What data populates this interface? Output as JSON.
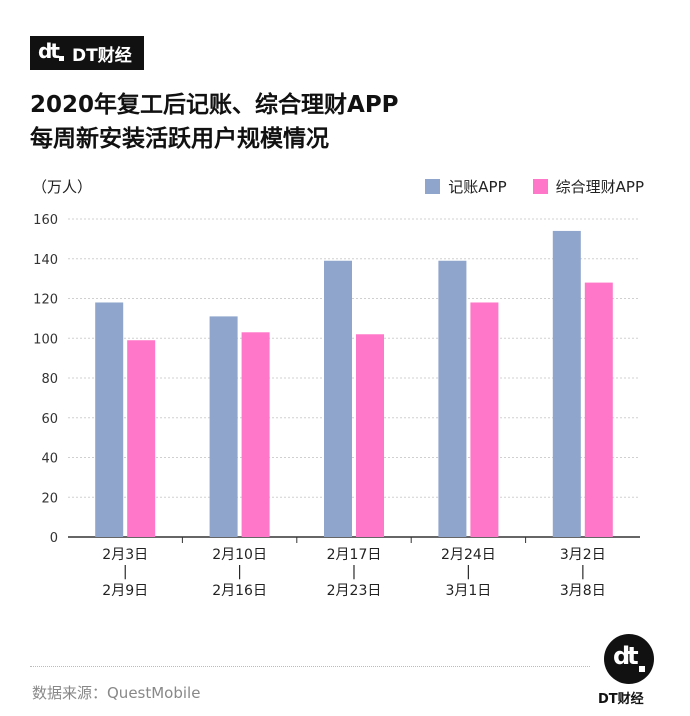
{
  "brand": {
    "name": "DT财经",
    "logo_text": "DT财经"
  },
  "title_lines": [
    "2020年复工后记账、综合理财APP",
    "每周新安装活跃用户规模情况"
  ],
  "unit_label": "（万人）",
  "source": "数据来源：QuestMobile",
  "colors": {
    "series1": "#8FA5CC",
    "series2": "#FF77C8",
    "grid": "#d0d0d0",
    "axis": "#333333"
  },
  "chart_data": {
    "type": "bar",
    "title": "2020年复工后记账、综合理财APP每周新安装活跃用户规模情况",
    "ylabel": "（万人）",
    "xlabel": "",
    "ylim": [
      0,
      160
    ],
    "yticks": [
      0,
      20,
      40,
      60,
      80,
      100,
      120,
      140,
      160
    ],
    "grid": true,
    "legend_position": "top-right",
    "categories": [
      {
        "start": "2月3日",
        "sep": "|",
        "end": "2月9日"
      },
      {
        "start": "2月10日",
        "sep": "|",
        "end": "2月16日"
      },
      {
        "start": "2月17日",
        "sep": "|",
        "end": "2月23日"
      },
      {
        "start": "2月24日",
        "sep": "|",
        "end": "3月1日"
      },
      {
        "start": "3月2日",
        "sep": "|",
        "end": "3月8日"
      }
    ],
    "series": [
      {
        "name": "记账APP",
        "values": [
          118,
          111,
          139,
          139,
          154
        ]
      },
      {
        "name": "综合理财APP",
        "values": [
          99,
          103,
          102,
          118,
          128
        ]
      }
    ]
  }
}
